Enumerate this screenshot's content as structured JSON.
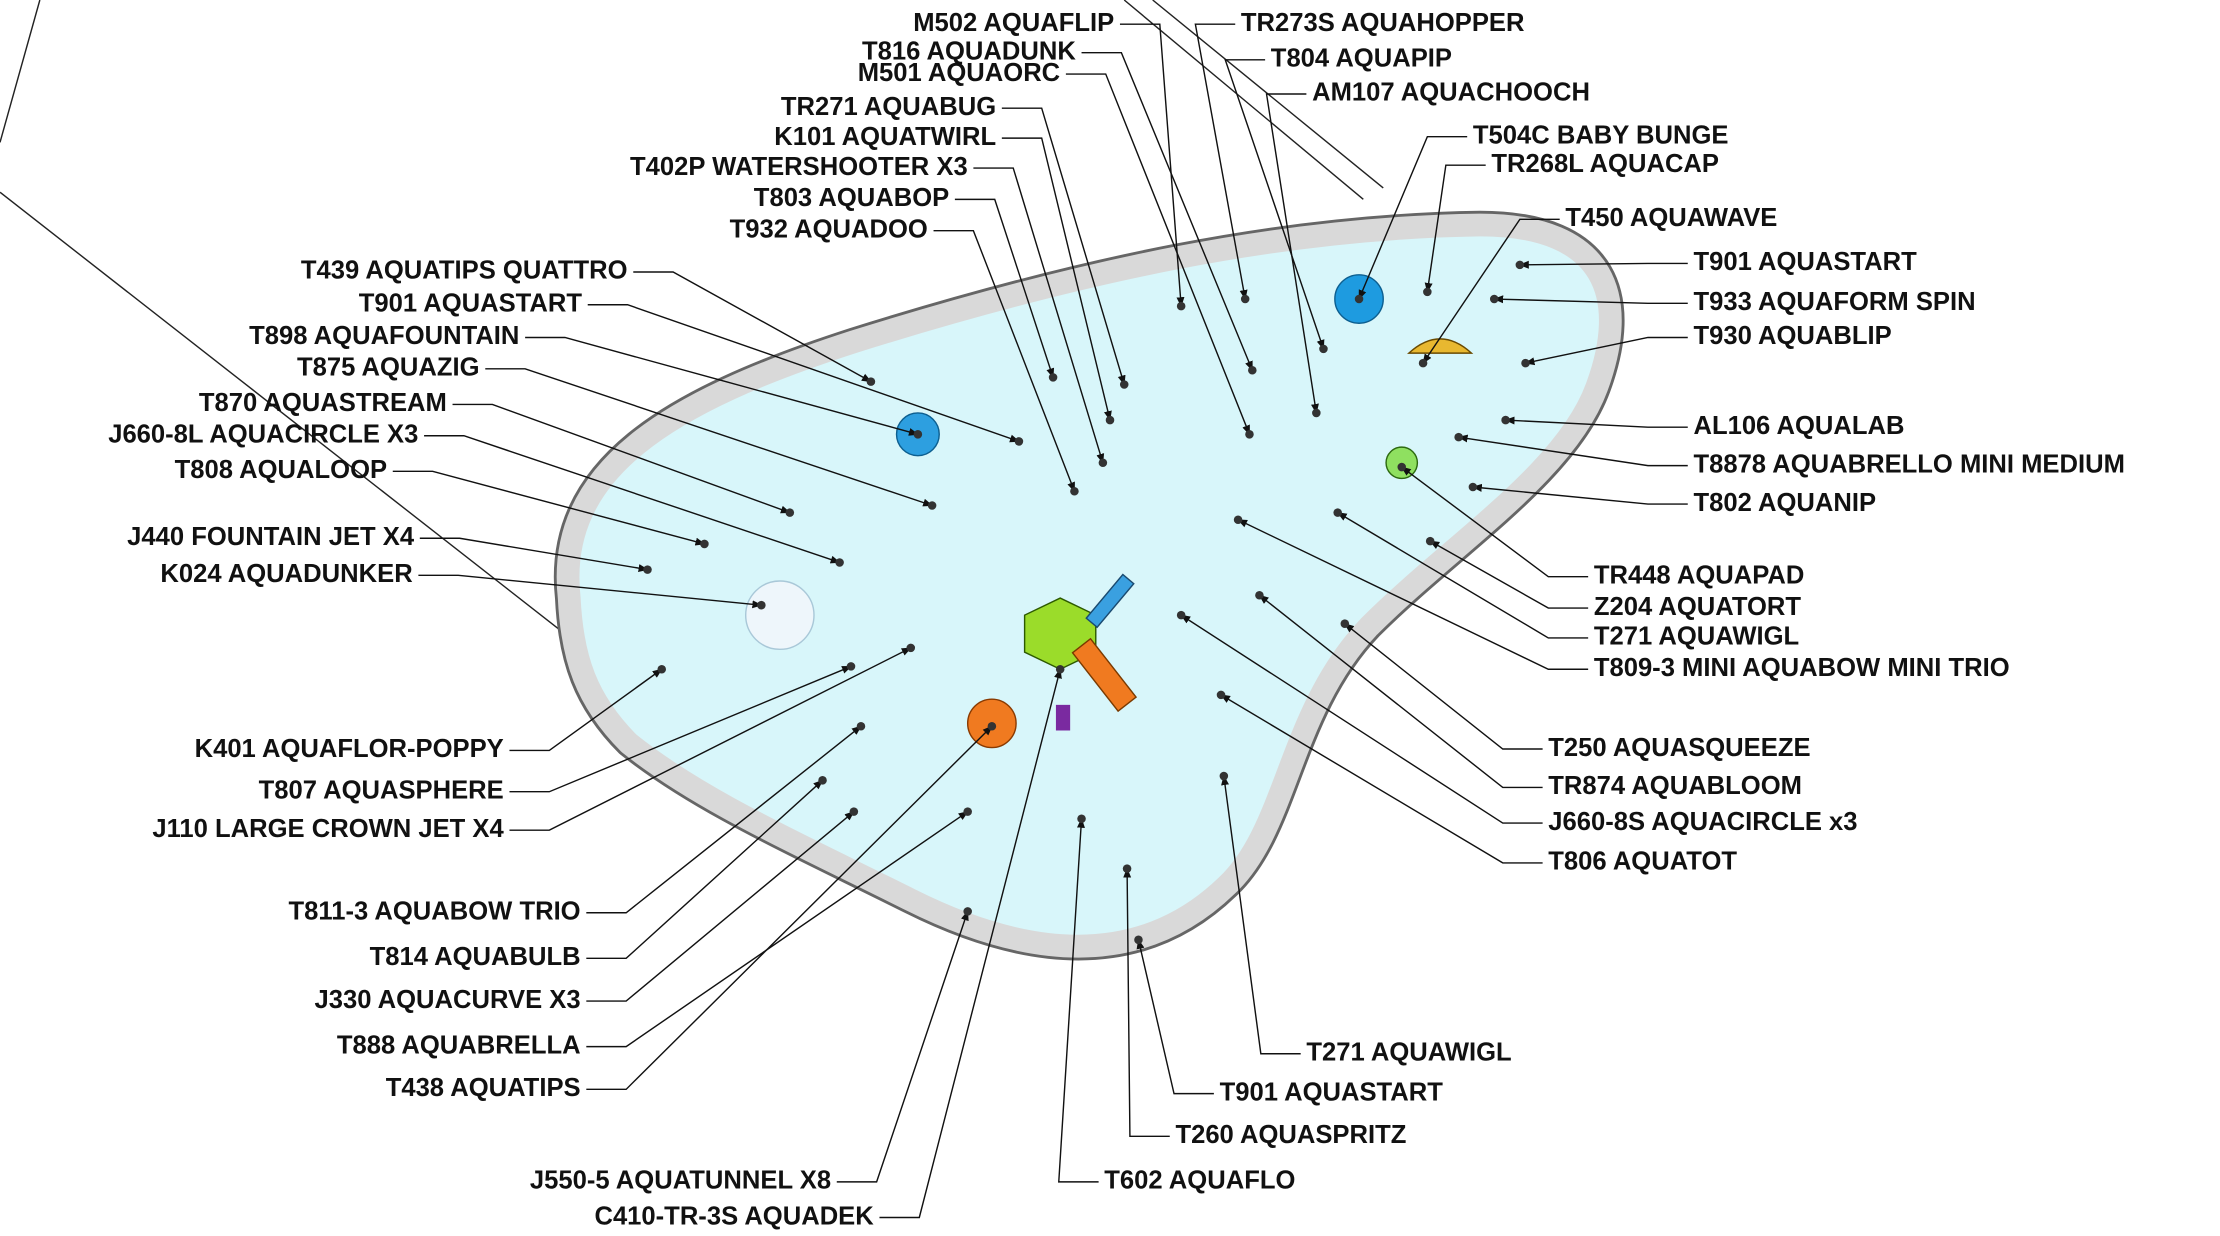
{
  "labels": [
    "M502 AQUAFLIP",
    "T816 AQUADUNK",
    "M501 AQUAORC",
    "TR271 AQUABUG",
    "K101 AQUATWIRL",
    "T402P WATERSHOOTER   X3",
    "T803 AQUABOP",
    "T932 AQUADOO",
    "T439 AQUATIPS QUATTRO",
    "T901 AQUASTART",
    "T898 AQUAFOUNTAIN",
    "T875 AQUAZIG",
    "T870 AQUASTREAM",
    "J660-8L AQUACIRCLE   X3",
    "T808 AQUALOOP",
    "J440 FOUNTAIN JET  X4",
    "K024 AQUADUNKER",
    "K401 AQUAFLOR-POPPY",
    "T807 AQUASPHERE",
    "J110 LARGE CROWN JET  X4",
    "T811-3 AQUABOW TRIO",
    "T814 AQUABULB",
    "J330 AQUACURVE  X3",
    "T888 AQUABRELLA",
    "T438 AQUATIPS",
    "J550-5 AQUATUNNEL   X8",
    "C410-TR-3S AQUADEK",
    "T602 AQUAFLO",
    "T260 AQUASPRITZ",
    "T901 AQUASTART",
    "T271 AQUAWIGL",
    "T806 AQUATOT",
    "J660-8S AQUACIRCLE  x3",
    "TR874 AQUABLOOM",
    "T250 AQUASQUEEZE",
    "T809-3 MINI AQUABOW MINI TRIO",
    "T271 AQUAWIGL",
    "Z204 AQUATORT",
    "TR448 AQUAPAD",
    "T802 AQUANIP",
    "T8878 AQUABRELLO MINI MEDIUM",
    "AL106 AQUALAB",
    "T930 AQUABLIP",
    "T933 AQUAFORM SPIN",
    "T901 AQUASTART",
    "T450 AQUAWAVE",
    "TR268L AQUACAP",
    "T504C BABY BUNGE",
    "AM107 AQUACHOOCH",
    "T804 AQUAPIP",
    "TR273S AQUAHOPPER"
  ]
}
